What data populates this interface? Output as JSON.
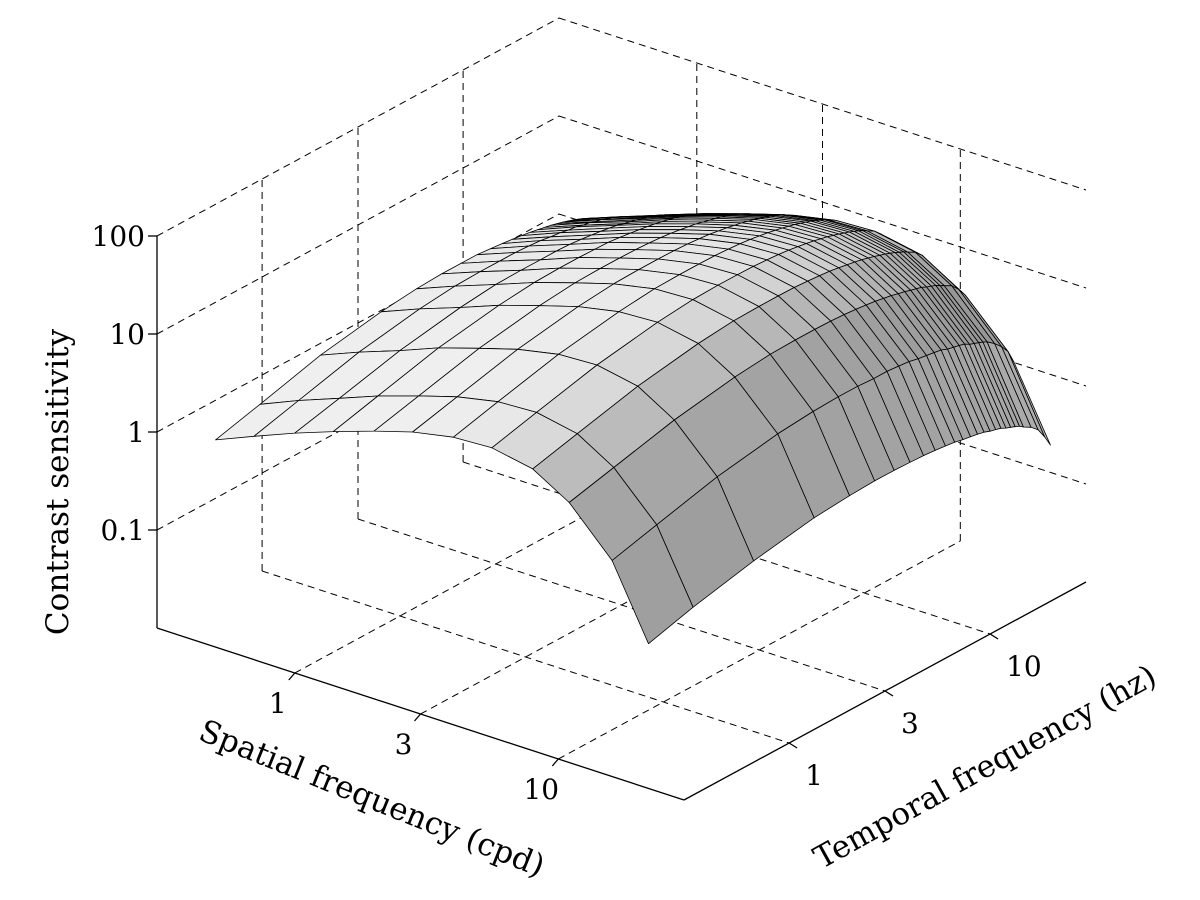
{
  "chart_data": {
    "type": "surface",
    "title": "",
    "xlabel": "Spatial frequency (cpd)",
    "ylabel": "Temporal frequency (hz)",
    "zlabel": "Contrast sensitivity",
    "x_scale": "log",
    "y_scale": "log",
    "z_scale": "log",
    "xlim": [
      0.3,
      30
    ],
    "ylim": [
      0.3,
      30
    ],
    "zlim": [
      0.01,
      100
    ],
    "x_ticks": [
      1,
      3,
      10
    ],
    "x_tick_labels": [
      "1",
      "3",
      "10"
    ],
    "y_ticks": [
      1,
      3,
      10
    ],
    "y_tick_labels": [
      "1",
      "3",
      "10"
    ],
    "z_ticks": [
      0.1,
      1,
      10,
      100
    ],
    "z_tick_labels": [
      "0.1",
      "1",
      "10",
      "100"
    ],
    "grid": true,
    "surface_color": "#c8c8c8",
    "edge_color": "#000000",
    "spatial_frequency": [
      0.5,
      0.7,
      1,
      1.4,
      2,
      2.8,
      4,
      5.6,
      8,
      11,
      16,
      22
    ],
    "temporal_frequency": [
      0.3,
      0.5,
      1,
      2,
      3,
      4,
      5,
      6,
      7,
      8,
      9,
      10,
      11,
      12,
      13,
      14,
      15,
      16,
      17,
      18,
      19,
      20,
      21,
      22,
      24,
      26,
      28,
      30
    ],
    "sensitivity": [
      [
        1.3,
        1.7,
        2.5,
        3.2,
        3.5,
        3.6,
        3.6,
        3.6,
        3.5,
        3.4,
        3.3,
        3.2,
        3.1,
        3.0,
        2.9,
        2.8,
        2.7,
        2.6,
        2.5,
        2.4,
        2.3,
        2.2,
        2.1,
        2.0,
        1.8,
        1.5,
        1.2,
        0.9
      ],
      [
        1.9,
        2.5,
        3.6,
        4.6,
        5.0,
        5.1,
        5.1,
        5.1,
        5.0,
        4.9,
        4.7,
        4.6,
        4.4,
        4.3,
        4.1,
        4.0,
        3.8,
        3.7,
        3.5,
        3.4,
        3.2,
        3.1,
        2.9,
        2.8,
        2.5,
        2.1,
        1.7,
        1.3
      ],
      [
        2.8,
        3.6,
        5.1,
        6.5,
        7.1,
        7.2,
        7.2,
        7.2,
        7.1,
        6.9,
        6.7,
        6.5,
        6.3,
        6.1,
        5.8,
        5.6,
        5.4,
        5.2,
        5.0,
        4.8,
        4.6,
        4.4,
        4.2,
        3.9,
        3.5,
        3.0,
        2.4,
        1.8
      ],
      [
        3.9,
        5.1,
        7.3,
        9.2,
        10.0,
        10.2,
        10.2,
        10.1,
        10.0,
        9.7,
        9.4,
        9.1,
        8.8,
        8.5,
        8.2,
        7.9,
        7.6,
        7.3,
        7.0,
        6.7,
        6.4,
        6.1,
        5.8,
        5.5,
        4.9,
        4.2,
        3.4,
        2.5
      ],
      [
        5.4,
        7.0,
        9.9,
        12.5,
        13.6,
        13.8,
        13.8,
        13.7,
        13.5,
        13.2,
        12.8,
        12.4,
        12.0,
        11.6,
        11.1,
        10.7,
        10.3,
        9.9,
        9.5,
        9.1,
        8.7,
        8.3,
        7.9,
        7.5,
        6.7,
        5.7,
        4.6,
        3.4
      ],
      [
        7.1,
        9.2,
        13.0,
        16.4,
        17.8,
        18.1,
        18.1,
        18.0,
        17.7,
        17.3,
        16.8,
        16.2,
        15.7,
        15.1,
        14.6,
        14.0,
        13.5,
        12.9,
        12.4,
        11.9,
        11.4,
        10.9,
        10.4,
        9.8,
        8.8,
        7.5,
        6.0,
        4.5
      ],
      [
        8.6,
        11.2,
        15.8,
        19.9,
        21.7,
        22.0,
        22.0,
        21.9,
        21.5,
        21.0,
        20.4,
        19.7,
        19.1,
        18.4,
        17.7,
        17.0,
        16.4,
        15.7,
        15.1,
        14.5,
        13.8,
        13.2,
        12.6,
        11.9,
        10.7,
        9.1,
        7.3,
        5.4
      ],
      [
        9.0,
        11.7,
        16.5,
        20.8,
        22.6,
        23.0,
        23.0,
        22.8,
        22.4,
        21.9,
        21.3,
        20.6,
        19.9,
        19.2,
        18.5,
        17.8,
        17.1,
        16.4,
        15.7,
        15.1,
        14.4,
        13.8,
        13.1,
        12.4,
        11.2,
        9.5,
        7.6,
        5.7
      ],
      [
        7.5,
        9.7,
        13.7,
        17.3,
        18.8,
        19.1,
        19.1,
        19.0,
        18.6,
        18.2,
        17.7,
        17.1,
        16.5,
        16.0,
        15.4,
        14.8,
        14.2,
        13.6,
        13.1,
        12.5,
        12.0,
        11.4,
        10.9,
        10.3,
        9.3,
        7.9,
        6.3,
        4.7
      ],
      [
        4.5,
        5.8,
        8.2,
        10.4,
        11.3,
        11.5,
        11.5,
        11.4,
        11.2,
        10.9,
        10.6,
        10.3,
        9.9,
        9.6,
        9.2,
        8.9,
        8.5,
        8.2,
        7.9,
        7.5,
        7.2,
        6.9,
        6.5,
        6.2,
        5.6,
        4.7,
        3.8,
        2.8
      ],
      [
        1.6,
        2.1,
        3.0,
        3.8,
        4.1,
        4.2,
        4.2,
        4.1,
        4.1,
        4.0,
        3.9,
        3.7,
        3.6,
        3.5,
        3.4,
        3.2,
        3.1,
        3.0,
        2.9,
        2.7,
        2.6,
        2.5,
        2.4,
        2.3,
        2.0,
        1.7,
        1.4,
        1.0
      ],
      [
        0.3,
        0.4,
        0.55,
        0.7,
        0.75,
        0.77,
        0.77,
        0.76,
        0.75,
        0.73,
        0.71,
        0.69,
        0.66,
        0.64,
        0.62,
        0.6,
        0.57,
        0.55,
        0.53,
        0.5,
        0.48,
        0.46,
        0.44,
        0.41,
        0.37,
        0.32,
        0.25,
        0.19
      ]
    ]
  }
}
